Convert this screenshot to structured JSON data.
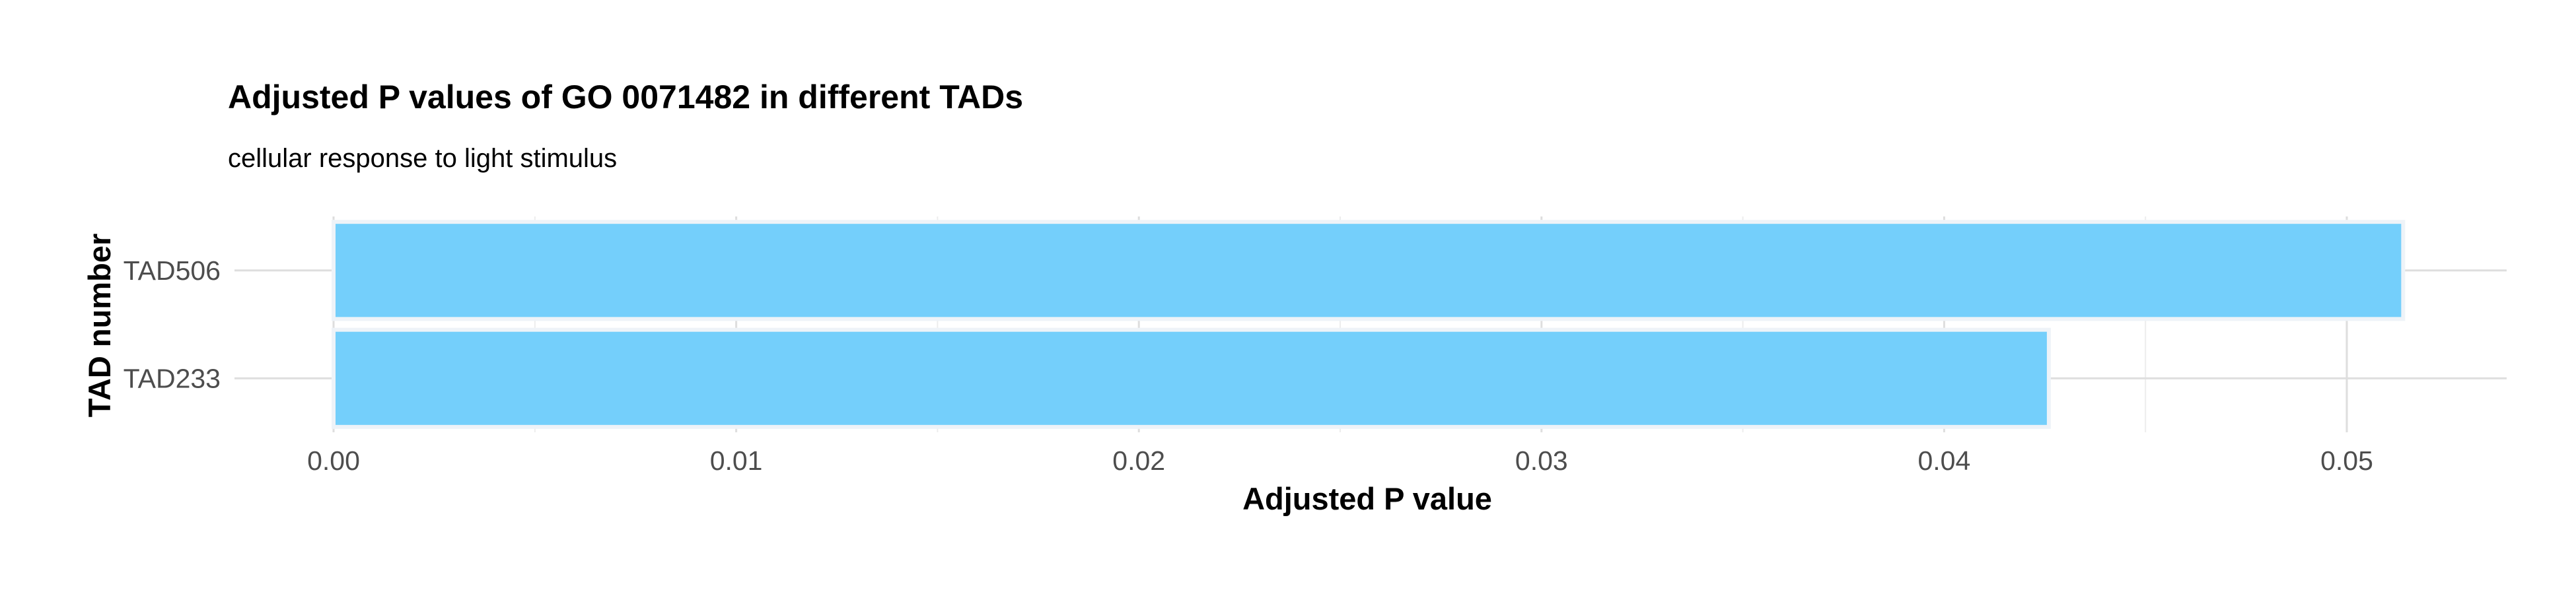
{
  "chart_data": {
    "type": "bar",
    "orientation": "horizontal",
    "title": "Adjusted P values of GO 0071482 in different TADs",
    "subtitle": "cellular response to light stimulus",
    "xlabel": "Adjusted P value",
    "ylabel": "TAD number",
    "categories": [
      "TAD233",
      "TAD506"
    ],
    "values": [
      0.0426,
      0.0514
    ],
    "xlim": [
      0,
      0.054
    ],
    "xticks": [
      0.0,
      0.01,
      0.02,
      0.03,
      0.04,
      0.05
    ],
    "xtick_labels": [
      "0.00",
      "0.01",
      "0.02",
      "0.03",
      "0.04",
      "0.05"
    ],
    "grid": true,
    "legend": "none",
    "bar_color": "#74CFFB",
    "bar_outline": "#EEF3F8"
  }
}
